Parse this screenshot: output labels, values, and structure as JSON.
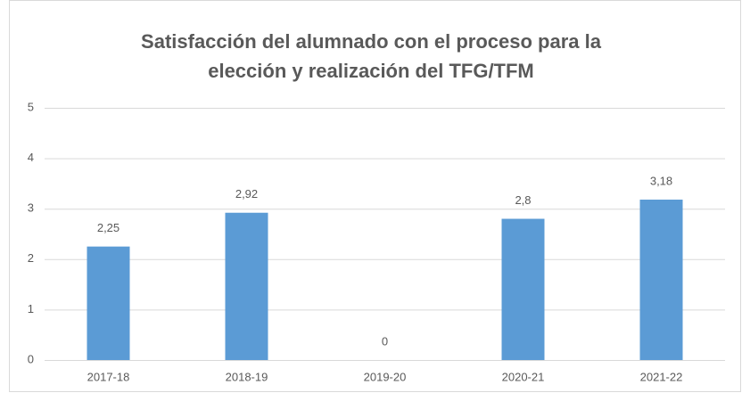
{
  "chart_data": {
    "type": "bar",
    "title": "Satisfacción del alumnado con el proceso para la elección y realización del TFG/TFM",
    "categories": [
      "2017-18",
      "2018-19",
      "2019-20",
      "2020-21",
      "2021-22"
    ],
    "values": [
      2.25,
      2.92,
      0,
      2.8,
      3.18
    ],
    "value_labels": [
      "2,25",
      "2,92",
      "0",
      "2,8",
      "3,18"
    ],
    "color": "#5b9bd5",
    "ylim": [
      0,
      5
    ],
    "yticks": [
      0,
      1,
      2,
      3,
      4,
      5
    ],
    "grid": true
  }
}
